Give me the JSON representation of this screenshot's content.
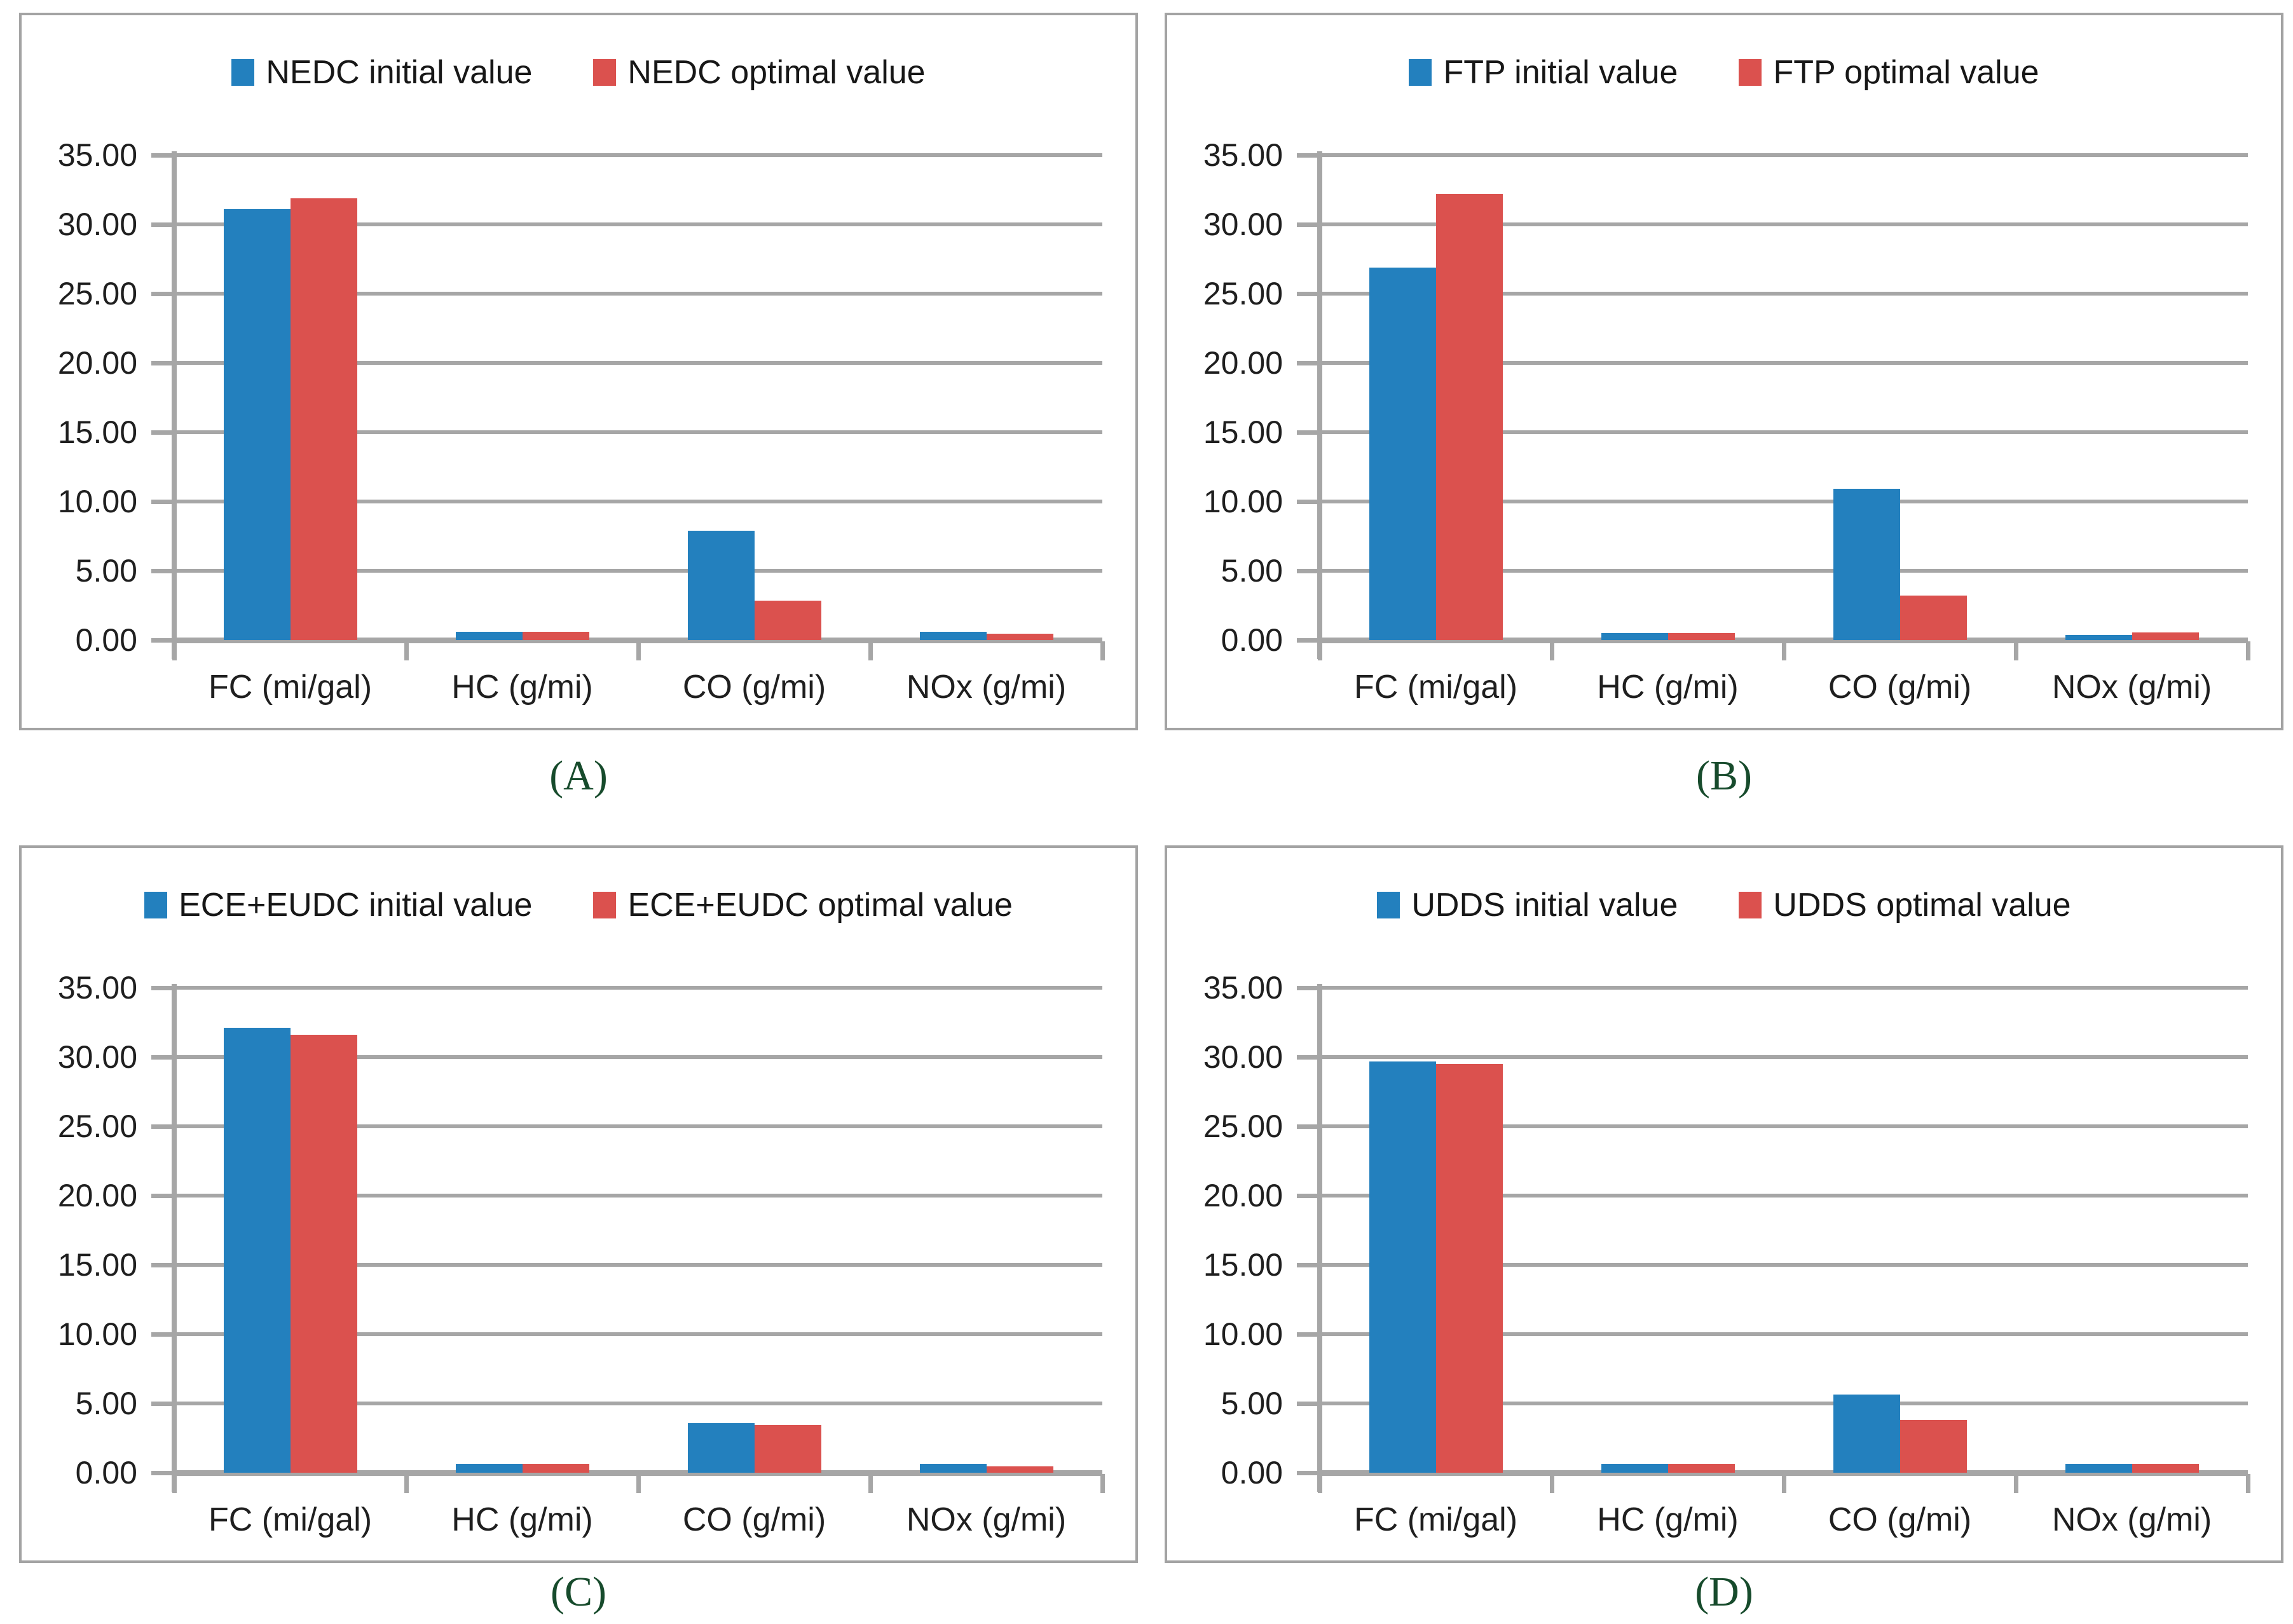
{
  "colors": {
    "bar_initial": "#2380BE",
    "bar_optimal": "#DB514E",
    "gridline": "#A6A6A6",
    "axis": "#A6A6A6",
    "panel_border": "#A3A3A3",
    "caption_text": "#174B2C",
    "label_text": "#1F1F1F"
  },
  "y_axis": {
    "ticks": [
      "0.00",
      "5.00",
      "10.00",
      "15.00",
      "20.00",
      "25.00",
      "30.00",
      "35.00"
    ],
    "min": 0,
    "max": 35,
    "step": 5
  },
  "chart_data": [
    {
      "type": "bar",
      "caption": "(A)",
      "categories": [
        "FC (mi/gal)",
        "HC (g/mi)",
        "CO (g/mi)",
        "NOx (g/mi)"
      ],
      "ylim": [
        0,
        35
      ],
      "grid": true,
      "legend_position": "top",
      "series": [
        {
          "name": "NEDC initial value",
          "color": "#2380BE",
          "values": [
            31.1,
            0.6,
            7.9,
            0.6
          ]
        },
        {
          "name": "NEDC optimal value",
          "color": "#DB514E",
          "values": [
            31.9,
            0.6,
            2.85,
            0.45
          ]
        }
      ]
    },
    {
      "type": "bar",
      "caption": "(B)",
      "categories": [
        "FC (mi/gal)",
        "HC (g/mi)",
        "CO (g/mi)",
        "NOx (g/mi)"
      ],
      "ylim": [
        0,
        35
      ],
      "grid": true,
      "legend_position": "top",
      "series": [
        {
          "name": "FTP initial value",
          "color": "#2380BE",
          "values": [
            26.9,
            0.5,
            10.9,
            0.35
          ]
        },
        {
          "name": "FTP optimal value",
          "color": "#DB514E",
          "values": [
            32.2,
            0.5,
            3.2,
            0.55
          ]
        }
      ]
    },
    {
      "type": "bar",
      "caption": "(C)",
      "categories": [
        "FC (mi/gal)",
        "HC (g/mi)",
        "CO (g/mi)",
        "NOx (g/mi)"
      ],
      "ylim": [
        0,
        35
      ],
      "grid": true,
      "legend_position": "top",
      "series": [
        {
          "name": "ECE+EUDC initial value",
          "color": "#2380BE",
          "values": [
            32.1,
            0.65,
            3.6,
            0.65
          ]
        },
        {
          "name": "ECE+EUDC optimal value",
          "color": "#DB514E",
          "values": [
            31.6,
            0.65,
            3.45,
            0.45
          ]
        }
      ]
    },
    {
      "type": "bar",
      "caption": "(D)",
      "categories": [
        "FC (mi/gal)",
        "HC (g/mi)",
        "CO (g/mi)",
        "NOx (g/mi)"
      ],
      "ylim": [
        0,
        35
      ],
      "grid": true,
      "legend_position": "top",
      "series": [
        {
          "name": "UDDS initial value",
          "color": "#2380BE",
          "values": [
            29.7,
            0.65,
            5.65,
            0.65
          ]
        },
        {
          "name": "UDDS optimal value",
          "color": "#DB514E",
          "values": [
            29.5,
            0.65,
            3.8,
            0.65
          ]
        }
      ]
    }
  ]
}
